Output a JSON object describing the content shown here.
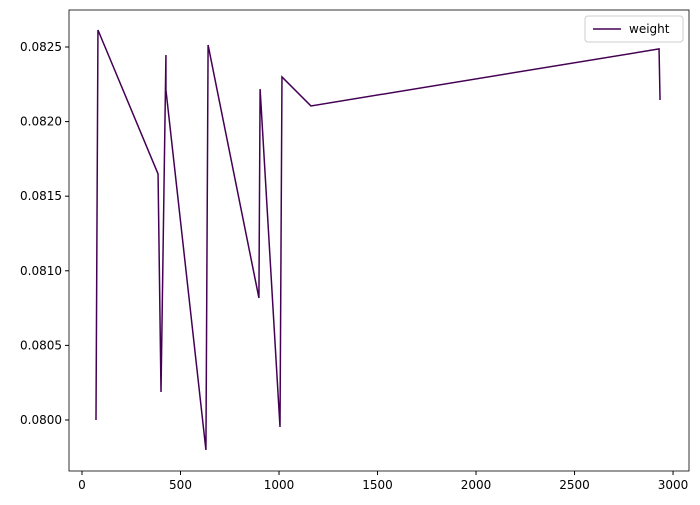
{
  "chart_data": {
    "type": "line",
    "x": [
      71,
      81,
      386,
      401,
      426,
      426,
      629,
      640,
      898,
      904,
      1005,
      1015,
      1162,
      2929,
      2934
    ],
    "series": [
      {
        "name": "weight",
        "color": "#440154",
        "values": [
          0.08,
          0.082614,
          0.081649,
          0.080188,
          0.082446,
          0.082212,
          0.079799,
          0.082513,
          0.080818,
          0.082218,
          0.079953,
          0.082299,
          0.082105,
          0.082487,
          0.082145
        ]
      }
    ],
    "xlim": [
      -66,
      3081
    ],
    "ylim": [
      0.079658,
      0.082748
    ],
    "xticks": [
      0,
      500,
      1000,
      1500,
      2000,
      2500,
      3000
    ],
    "yticks": [
      {
        "value": 0.08,
        "label": "0.0800"
      },
      {
        "value": 0.0805,
        "label": "0.0805"
      },
      {
        "value": 0.081,
        "label": "0.0810"
      },
      {
        "value": 0.0815,
        "label": "0.0815"
      },
      {
        "value": 0.082,
        "label": "0.0820"
      },
      {
        "value": 0.0825,
        "label": "0.0825"
      }
    ],
    "legend": "upper right"
  }
}
